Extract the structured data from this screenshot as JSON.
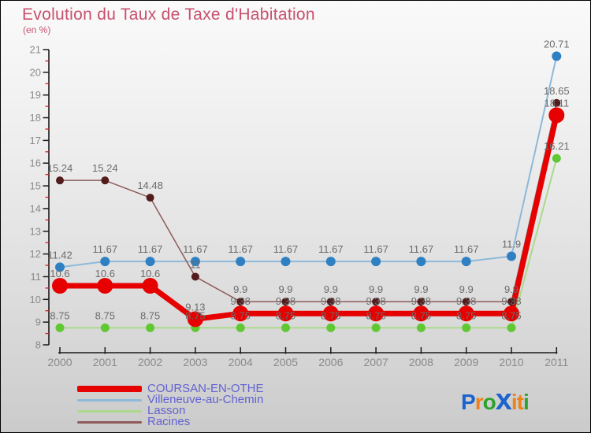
{
  "title": "Evolution du Taux de Taxe d'Habitation",
  "subtitle": "(en %)",
  "colors": {
    "title": "#c8506e",
    "legend_text": "#6262d2",
    "axis": "#1a1a1a",
    "tick_label": "#8a8a8a",
    "minor_tick": "#cc2222",
    "data_label": "#6b6b6b"
  },
  "chart_data": {
    "type": "line",
    "x": [
      "2000",
      "2001",
      "2002",
      "2003",
      "2004",
      "2005",
      "2006",
      "2007",
      "2008",
      "2009",
      "2010",
      "2011"
    ],
    "ylim": [
      8,
      21
    ],
    "ytick_step": 1,
    "yminor_step": 0.5,
    "grid": false,
    "legend_position": "bottom-left",
    "series": [
      {
        "name": "COURSAN-EN-OTHE",
        "color": "#e60000",
        "dot_color": "#e60000",
        "line_width": 7,
        "dot_radius": 10,
        "values": [
          10.6,
          10.6,
          10.6,
          9.13,
          9.38,
          9.38,
          9.38,
          9.38,
          9.38,
          9.38,
          9.38,
          18.11
        ],
        "labels": [
          "10.6",
          "10.6",
          "10.6",
          "9.13",
          "9.38",
          "9.38",
          "9.38",
          "9.38",
          "9.38",
          "9.38",
          "9.38",
          "18.11"
        ]
      },
      {
        "name": "Villeneuve-au-Chemin",
        "color": "#8db9da",
        "dot_color": "#2f80c2",
        "line_width": 2,
        "dot_radius": 6,
        "values": [
          11.42,
          11.67,
          11.67,
          11.67,
          11.67,
          11.67,
          11.67,
          11.67,
          11.67,
          11.67,
          11.9,
          20.71
        ],
        "labels": [
          "11.42",
          "11.67",
          "11.67",
          "11.67",
          "11.67",
          "11.67",
          "11.67",
          "11.67",
          "11.67",
          "11.67",
          "11.9",
          "20.71"
        ]
      },
      {
        "name": "Lasson",
        "color": "#abd98b",
        "dot_color": "#5fc832",
        "line_width": 2,
        "dot_radius": 5.5,
        "values": [
          8.75,
          8.75,
          8.75,
          8.75,
          8.75,
          8.75,
          8.75,
          8.75,
          8.75,
          8.75,
          8.75,
          16.21
        ],
        "labels": [
          "8.75",
          "8.75",
          "8.75",
          "8.75",
          "8.75",
          "8.75",
          "8.75",
          "8.75",
          "8.75",
          "8.75",
          "8.75",
          "16.21"
        ]
      },
      {
        "name": "Racines",
        "color": "#8f5a5a",
        "dot_color": "#521c1c",
        "line_width": 1.5,
        "dot_radius": 5,
        "values": [
          15.24,
          15.24,
          14.48,
          11,
          9.9,
          9.9,
          9.9,
          9.9,
          9.9,
          9.9,
          9.9,
          18.65
        ],
        "labels": [
          "15.24",
          "15.24",
          "14.48",
          "11",
          "9.9",
          "9.9",
          "9.9",
          "9.9",
          "9.9",
          "9.9",
          "9.9",
          "18.65"
        ]
      }
    ]
  },
  "legend": [
    {
      "label": "COURSAN-EN-OTHE",
      "color": "#e60000",
      "thickness": 8
    },
    {
      "label": "Villeneuve-au-Chemin",
      "color": "#8db9da",
      "thickness": 3
    },
    {
      "label": "Lasson",
      "color": "#abd98b",
      "thickness": 3
    },
    {
      "label": "Racines",
      "color": "#8f5a5a",
      "thickness": 3
    }
  ],
  "logo": {
    "letters": [
      {
        "char": "P",
        "color": "#1b64cd",
        "size": 28,
        "bold": true
      },
      {
        "char": "r",
        "color": "#ee8219",
        "size": 28,
        "bold": true
      },
      {
        "char": "o",
        "color": "#2ea12e",
        "size": 28,
        "bold": true
      },
      {
        "char": "x",
        "color": "#1b64cd",
        "size": 38,
        "bold": true
      },
      {
        "char": "i",
        "color": "#ee8219",
        "size": 28,
        "bold": true
      },
      {
        "char": "t",
        "color": "#ee8219",
        "size": 28,
        "bold": true
      },
      {
        "char": "i",
        "color": "#2ea12e",
        "size": 28,
        "bold": true
      }
    ]
  }
}
